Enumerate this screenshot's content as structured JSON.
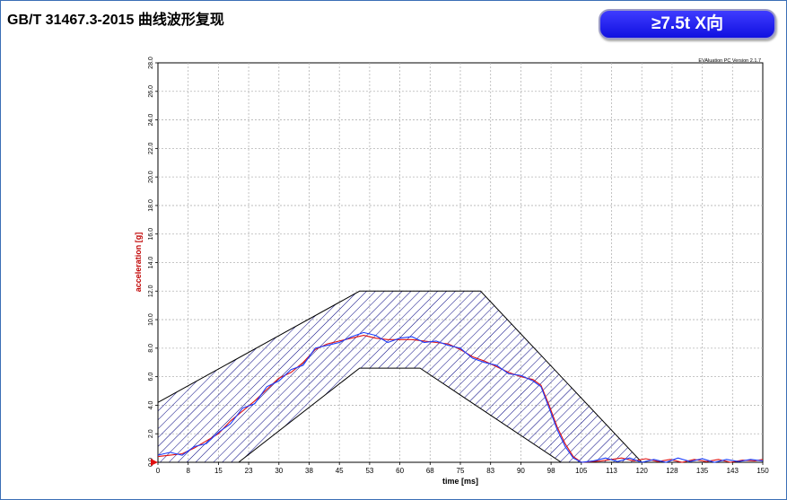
{
  "header": {
    "title": "GB/T 31467.3-2015 曲线波形复现",
    "badge": "≥7.5t X向"
  },
  "software_label": "EVAluation PC Version 2.1.7",
  "colors": {
    "frame": "#3b6fb6",
    "badge": "#2020f0",
    "grid": "#b4b4b4",
    "red_curve": "#e01010",
    "blue_curve": "#1a3cff",
    "hatch": "#000080",
    "ylabel": "#c00000"
  },
  "chart_data": {
    "type": "line",
    "xlabel": "time [ms]",
    "ylabel": "acceleration [g]",
    "xlim": [
      0,
      150
    ],
    "ylim": [
      0,
      28
    ],
    "grid": true,
    "x_ticks": [
      "0",
      "8",
      "15",
      "23",
      "30",
      "38",
      "45",
      "53",
      "60",
      "68",
      "75",
      "83",
      "90",
      "98",
      "105",
      "113",
      "120",
      "128",
      "135",
      "143",
      "150"
    ],
    "y_ticks": [
      "0.0",
      "2.0",
      "4.0",
      "6.0",
      "8.0",
      "10.0",
      "12.0",
      "14.0",
      "16.0",
      "18.0",
      "20.0",
      "22.0",
      "24.0",
      "26.0",
      "28.0"
    ],
    "corridor_upper": [
      [
        0,
        4.2
      ],
      [
        50,
        12
      ],
      [
        80,
        12
      ],
      [
        120,
        0
      ]
    ],
    "corridor_lower": [
      [
        20,
        0
      ],
      [
        50,
        6.6
      ],
      [
        65,
        6.6
      ],
      [
        100,
        0
      ]
    ],
    "series": [
      {
        "color": "red",
        "values": [
          [
            0,
            0.4
          ],
          [
            3,
            0.5
          ],
          [
            6,
            0.6
          ],
          [
            9,
            1.0
          ],
          [
            12,
            1.5
          ],
          [
            15,
            2.0
          ],
          [
            18,
            2.9
          ],
          [
            21,
            3.6
          ],
          [
            24,
            4.3
          ],
          [
            27,
            5.1
          ],
          [
            30,
            5.9
          ],
          [
            33,
            6.3
          ],
          [
            36,
            7.0
          ],
          [
            39,
            7.9
          ],
          [
            42,
            8.3
          ],
          [
            45,
            8.5
          ],
          [
            48,
            8.7
          ],
          [
            51,
            8.9
          ],
          [
            54,
            8.7
          ],
          [
            57,
            8.6
          ],
          [
            60,
            8.6
          ],
          [
            63,
            8.6
          ],
          [
            66,
            8.5
          ],
          [
            69,
            8.4
          ],
          [
            72,
            8.3
          ],
          [
            75,
            7.9
          ],
          [
            78,
            7.4
          ],
          [
            81,
            7.1
          ],
          [
            84,
            6.7
          ],
          [
            87,
            6.3
          ],
          [
            90,
            6.0
          ],
          [
            93,
            5.8
          ],
          [
            95,
            5.4
          ],
          [
            97,
            4.0
          ],
          [
            99,
            2.5
          ],
          [
            101,
            1.3
          ],
          [
            103,
            0.4
          ],
          [
            105,
            0.0
          ],
          [
            110,
            0.1
          ],
          [
            115,
            0.3
          ],
          [
            118,
            0.1
          ],
          [
            121,
            0.25
          ],
          [
            124,
            0.05
          ],
          [
            127,
            0.2
          ],
          [
            130,
            0.0
          ],
          [
            133,
            0.2
          ],
          [
            136,
            0.05
          ],
          [
            139,
            0.2
          ],
          [
            142,
            0.0
          ],
          [
            145,
            0.15
          ],
          [
            148,
            0.1
          ],
          [
            150,
            0.2
          ]
        ]
      },
      {
        "color": "blue",
        "values": [
          [
            0,
            0.5
          ],
          [
            3,
            0.7
          ],
          [
            6,
            0.5
          ],
          [
            9,
            1.1
          ],
          [
            12,
            1.3
          ],
          [
            15,
            2.1
          ],
          [
            18,
            2.7
          ],
          [
            21,
            3.8
          ],
          [
            24,
            4.1
          ],
          [
            27,
            5.3
          ],
          [
            30,
            5.7
          ],
          [
            33,
            6.5
          ],
          [
            36,
            6.8
          ],
          [
            39,
            8.0
          ],
          [
            42,
            8.2
          ],
          [
            45,
            8.4
          ],
          [
            48,
            8.8
          ],
          [
            51,
            9.1
          ],
          [
            54,
            8.9
          ],
          [
            57,
            8.4
          ],
          [
            60,
            8.7
          ],
          [
            63,
            8.8
          ],
          [
            66,
            8.4
          ],
          [
            69,
            8.5
          ],
          [
            72,
            8.2
          ],
          [
            75,
            8.0
          ],
          [
            78,
            7.3
          ],
          [
            81,
            7.0
          ],
          [
            84,
            6.8
          ],
          [
            87,
            6.2
          ],
          [
            90,
            6.1
          ],
          [
            93,
            5.7
          ],
          [
            95,
            5.3
          ],
          [
            97,
            3.8
          ],
          [
            99,
            2.3
          ],
          [
            101,
            1.1
          ],
          [
            103,
            0.3
          ],
          [
            105,
            0.0
          ],
          [
            108,
            0.1
          ],
          [
            111,
            0.3
          ],
          [
            114,
            0.05
          ],
          [
            117,
            0.3
          ],
          [
            120,
            0.0
          ],
          [
            123,
            0.2
          ],
          [
            126,
            0.0
          ],
          [
            129,
            0.3
          ],
          [
            132,
            0.05
          ],
          [
            135,
            0.25
          ],
          [
            138,
            0.0
          ],
          [
            141,
            0.2
          ],
          [
            144,
            0.05
          ],
          [
            147,
            0.2
          ],
          [
            150,
            0.1
          ]
        ]
      }
    ]
  }
}
